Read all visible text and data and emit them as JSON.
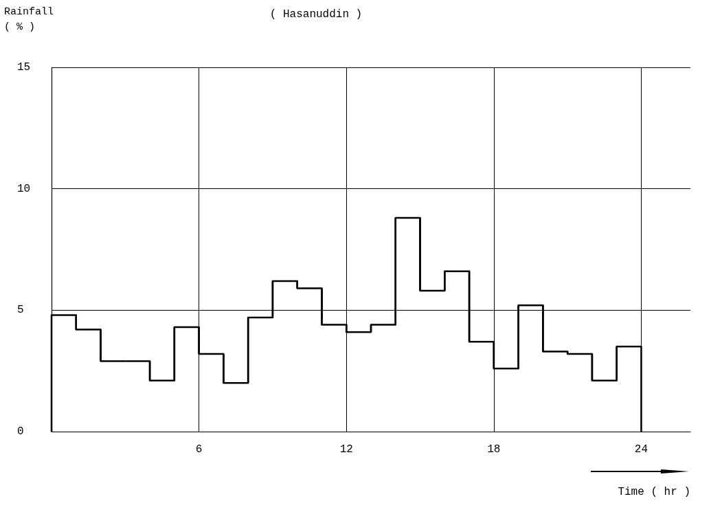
{
  "chart_data": {
    "type": "histogram",
    "title": "( Hasanuddin )",
    "xlabel": "Time ( hr )",
    "ylabel": "Rainfall\n( % )",
    "bins": [
      0,
      1,
      2,
      3,
      4,
      5,
      6,
      7,
      8,
      9,
      10,
      11,
      12,
      13,
      14,
      15,
      16,
      17,
      18,
      19,
      20,
      21,
      22,
      23,
      24
    ],
    "values": [
      4.8,
      4.2,
      2.9,
      2.9,
      2.1,
      4.3,
      3.2,
      2.0,
      4.7,
      6.2,
      5.9,
      4.4,
      4.1,
      4.4,
      8.8,
      5.8,
      6.6,
      3.7,
      2.6,
      5.2,
      3.3,
      3.2,
      2.1,
      3.5
    ],
    "color": "#000000",
    "xlim": [
      0,
      26
    ],
    "xticks": [
      6,
      12,
      18,
      24
    ],
    "ylim": [
      0,
      15
    ],
    "yticks": [
      0,
      5,
      10,
      15
    ],
    "grid": true
  }
}
